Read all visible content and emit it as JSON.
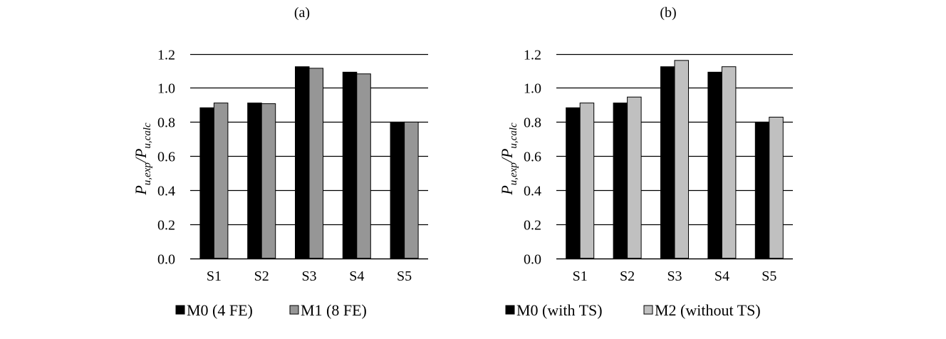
{
  "chart_data": [
    {
      "type": "bar",
      "title": "(a)",
      "xlabel": "",
      "ylabel_main": "P",
      "ylabel_sub1": "u,exp",
      "ylabel_slash": "/",
      "ylabel_sub2": "u,calc",
      "ylim": [
        0,
        1.2
      ],
      "yticks": [
        "0.0",
        "0.2",
        "0.4",
        "0.6",
        "0.8",
        "1.0",
        "1.2"
      ],
      "ytick_values": [
        0,
        0.2,
        0.4,
        0.6,
        0.8,
        1.0,
        1.2
      ],
      "grid": true,
      "legend_position": "bottom",
      "categories": [
        "S1",
        "S2",
        "S3",
        "S4",
        "S5"
      ],
      "series": [
        {
          "name": "M0 (4 FE)",
          "color": "#000000",
          "values": [
            0.883,
            0.911,
            1.124,
            1.092,
            0.799
          ]
        },
        {
          "name": "M1 (8 FE)",
          "color": "#969696",
          "values": [
            0.911,
            0.907,
            1.115,
            1.082,
            0.799
          ]
        }
      ]
    },
    {
      "type": "bar",
      "title": "(b)",
      "xlabel": "",
      "ylabel_main": "P",
      "ylabel_sub1": "u,exp",
      "ylabel_slash": "/",
      "ylabel_sub2": "u,calc",
      "ylim": [
        0,
        1.2
      ],
      "yticks": [
        "0.0",
        "0.2",
        "0.4",
        "0.6",
        "0.8",
        "1.0",
        "1.2"
      ],
      "ytick_values": [
        0,
        0.2,
        0.4,
        0.6,
        0.8,
        1.0,
        1.2
      ],
      "grid": true,
      "legend_position": "bottom",
      "categories": [
        "S1",
        "S2",
        "S3",
        "S4",
        "S5"
      ],
      "series": [
        {
          "name": "M0 (with TS)",
          "color": "#000000",
          "values": [
            0.883,
            0.911,
            1.124,
            1.092,
            0.799
          ]
        },
        {
          "name": "M2 (without TS)",
          "color": "#c0c0c0",
          "values": [
            0.911,
            0.946,
            1.161,
            1.124,
            0.828
          ]
        }
      ]
    }
  ]
}
